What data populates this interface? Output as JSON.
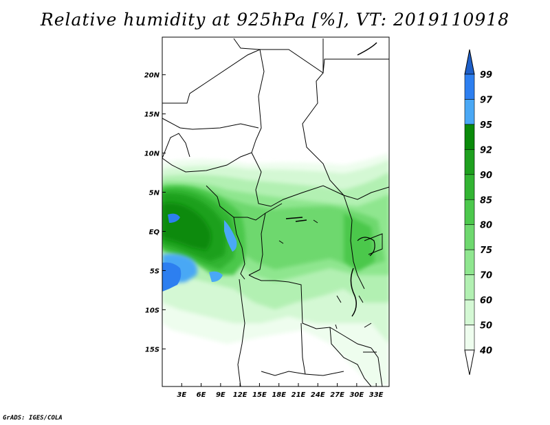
{
  "title": "Relative humidity at 925hPa [%], VT: 2019110918",
  "footer": "GrADS: IGES/COLA",
  "map": {
    "lat_labels": [
      "20N",
      "15N",
      "10N",
      "5N",
      "EQ",
      "5S",
      "10S",
      "15S"
    ],
    "lat_values": [
      20,
      15,
      10,
      5,
      0,
      -5,
      -10,
      -15
    ],
    "lon_labels": [
      "3E",
      "6E",
      "9E",
      "12E",
      "15E",
      "18E",
      "21E",
      "24E",
      "27E",
      "30E",
      "33E"
    ],
    "lon_values": [
      3,
      6,
      9,
      12,
      15,
      18,
      21,
      24,
      27,
      30,
      33
    ],
    "lon_range": [
      0,
      35
    ],
    "lat_range": [
      -19.8,
      24.8
    ]
  },
  "colorbar": {
    "levels": [
      "99",
      "97",
      "95",
      "92",
      "90",
      "85",
      "80",
      "75",
      "70",
      "60",
      "50",
      "40"
    ],
    "colors": [
      "#1e5fc8",
      "#2d7ff0",
      "#4aa8f5",
      "#0a8a0a",
      "#1ea01e",
      "#32b432",
      "#4cc84c",
      "#6ed86e",
      "#8fe68f",
      "#b2f0b2",
      "#d4f8d4",
      "#eefdee"
    ]
  }
}
